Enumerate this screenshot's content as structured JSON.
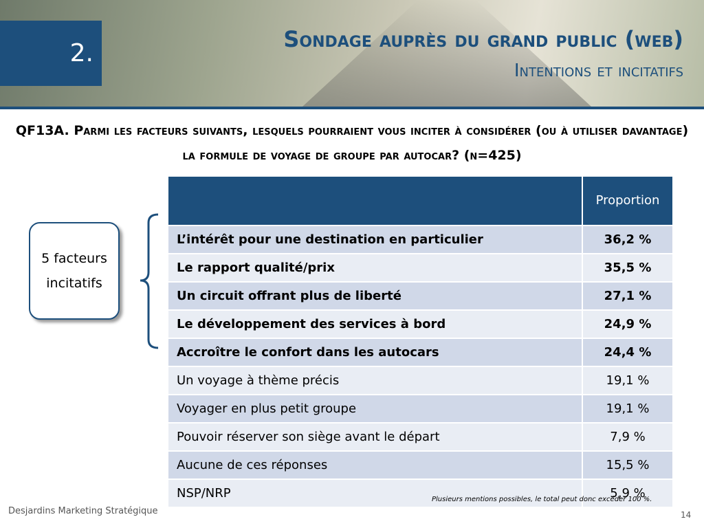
{
  "header": {
    "section": "2.",
    "title": "Sondage auprès du grand public (web)",
    "subtitle": "Intentions et incitatifs"
  },
  "question": "QF13A. Parmi les facteurs suivants, lesquels pourraient vous inciter à considérer (ou à utiliser davantage) la formule de voyage de groupe par autocar? (n=425)",
  "callout": "5 facteurs incitatifs",
  "table": {
    "header": "Proportion",
    "rows": [
      [
        "L’intérêt pour une destination en particulier",
        "36,2 %"
      ],
      [
        "Le rapport qualité/prix",
        "35,5 %"
      ],
      [
        "Un circuit offrant plus de liberté",
        "27,1 %"
      ],
      [
        "Le développement des services à bord",
        "24,9 %"
      ],
      [
        "Accroître le confort dans les autocars",
        "24,4 %"
      ],
      [
        "Un voyage à thème précis",
        "19,1 %"
      ],
      [
        "Voyager en plus petit groupe",
        "19,1 %"
      ],
      [
        "Pouvoir réserver son siège avant le départ",
        "7,9 %"
      ],
      [
        "Aucune de ces réponses",
        "15,5 %"
      ],
      [
        "NSP/NRP",
        "5,9 %"
      ]
    ]
  },
  "footnote": "Plusieurs mentions possibles, le total peut donc excéder 100 %.",
  "footer": {
    "organization": "Desjardins Marketing Stratégique",
    "page": "14"
  }
}
